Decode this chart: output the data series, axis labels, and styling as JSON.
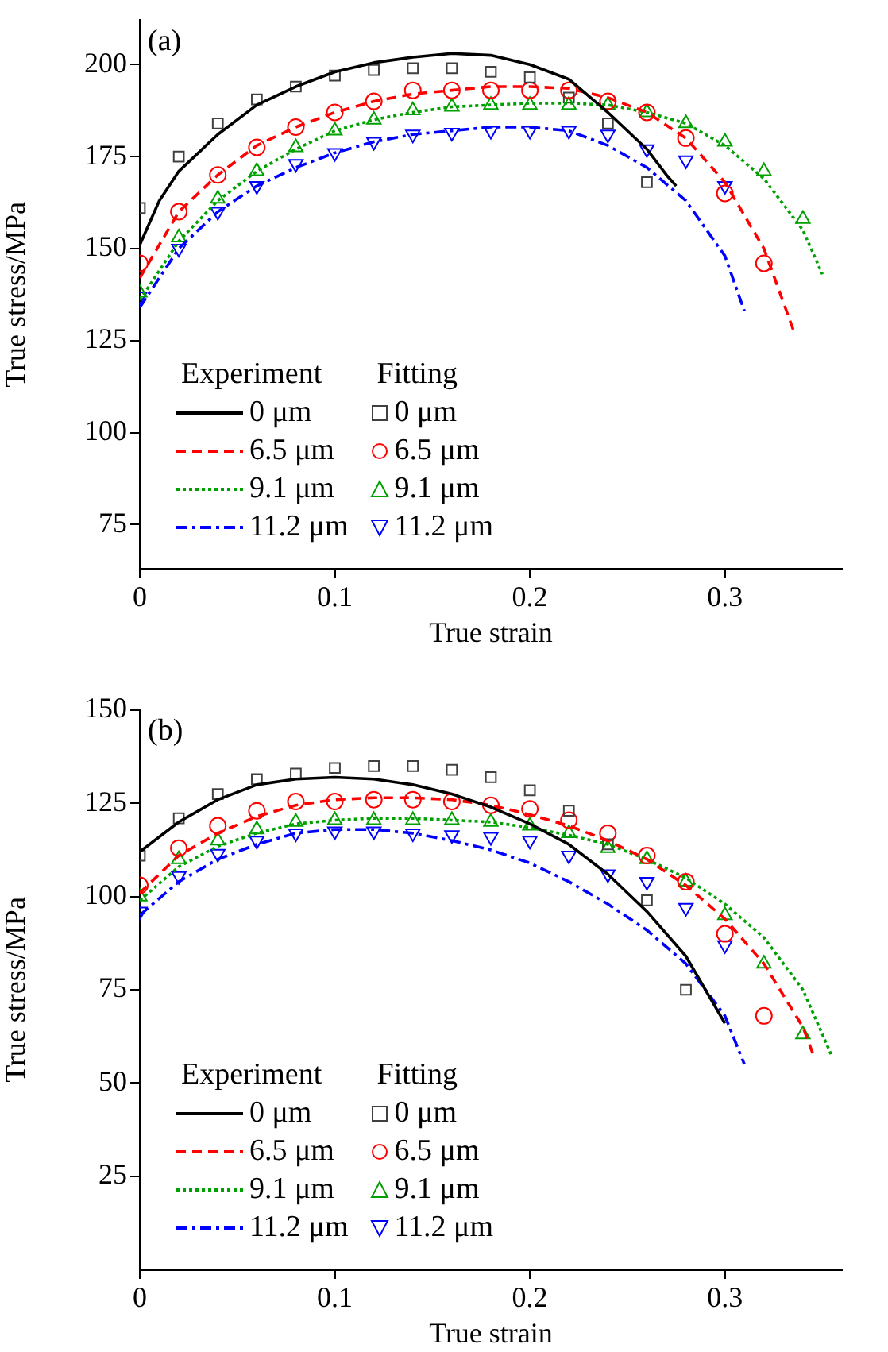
{
  "chart_data": [
    {
      "type": "line",
      "title": "(a)",
      "xlabel": "True strain",
      "ylabel": "True stress/MPa",
      "annotations": [
        "Experiment",
        "Fitting"
      ],
      "xlim": [
        0,
        0.36
      ],
      "ylim": [
        63,
        212
      ],
      "xticks": [
        0,
        0.1,
        0.2,
        0.3
      ],
      "yticks": [
        75,
        100,
        125,
        150,
        175,
        200
      ],
      "grid": false,
      "legend": "bottom left",
      "series": [
        {
          "name": "0 μm",
          "type": "line",
          "line_style": "solid",
          "color": "#000000",
          "x": [
            0,
            0.01,
            0.02,
            0.04,
            0.06,
            0.08,
            0.1,
            0.12,
            0.14,
            0.16,
            0.18,
            0.2,
            0.22,
            0.24,
            0.26,
            0.27,
            0.275
          ],
          "values": [
            151,
            163,
            171,
            181,
            189,
            194,
            198,
            200.5,
            202,
            203,
            202.5,
            200,
            196,
            187,
            177,
            170,
            167
          ]
        },
        {
          "name": "6.5 μm",
          "type": "line",
          "line_style": "dashed",
          "color": "#ff0000",
          "x": [
            0,
            0.02,
            0.04,
            0.06,
            0.08,
            0.1,
            0.12,
            0.14,
            0.16,
            0.18,
            0.2,
            0.22,
            0.24,
            0.26,
            0.28,
            0.3,
            0.32,
            0.335
          ],
          "values": [
            142,
            160,
            170,
            178,
            183,
            187,
            190,
            192,
            193,
            194,
            194,
            193.5,
            191,
            187,
            180,
            168,
            150,
            128
          ]
        },
        {
          "name": "9.1 μm",
          "type": "line",
          "line_style": "dotted",
          "color": "#00a000",
          "x": [
            0,
            0.02,
            0.04,
            0.06,
            0.08,
            0.1,
            0.12,
            0.14,
            0.16,
            0.18,
            0.2,
            0.22,
            0.24,
            0.26,
            0.28,
            0.3,
            0.32,
            0.34,
            0.35
          ],
          "values": [
            136,
            152,
            163,
            171,
            177,
            182,
            185,
            187,
            188.5,
            189,
            189.5,
            189.5,
            189,
            187,
            184,
            178,
            169,
            155,
            143
          ]
        },
        {
          "name": "11.2 μm",
          "type": "line",
          "line_style": "dashdot",
          "color": "#0000ff",
          "x": [
            0,
            0.02,
            0.04,
            0.06,
            0.08,
            0.1,
            0.12,
            0.14,
            0.16,
            0.18,
            0.2,
            0.22,
            0.24,
            0.26,
            0.28,
            0.3,
            0.31
          ],
          "values": [
            134,
            150,
            160,
            167,
            172,
            176,
            179,
            181,
            182,
            183,
            183,
            182,
            178,
            172,
            163,
            148,
            133
          ]
        },
        {
          "name": "0 μm",
          "type": "scatter",
          "marker": "square",
          "color": "#404040",
          "x": [
            0,
            0.02,
            0.04,
            0.06,
            0.08,
            0.1,
            0.12,
            0.14,
            0.16,
            0.18,
            0.2,
            0.22,
            0.24,
            0.26
          ],
          "values": [
            161,
            175,
            184,
            190.5,
            194,
            197,
            198.5,
            199,
            199,
            198,
            196.5,
            191,
            184,
            168
          ]
        },
        {
          "name": "6.5 μm",
          "type": "scatter",
          "marker": "circle",
          "color": "#ff0000",
          "x": [
            0,
            0.02,
            0.04,
            0.06,
            0.08,
            0.1,
            0.12,
            0.14,
            0.16,
            0.18,
            0.2,
            0.22,
            0.24,
            0.26,
            0.28,
            0.3,
            0.32
          ],
          "values": [
            146,
            160,
            170,
            177.5,
            183,
            187,
            190,
            193,
            193,
            193,
            193,
            193,
            190,
            187,
            180,
            165,
            146
          ]
        },
        {
          "name": "9.1 μm",
          "type": "scatter",
          "marker": "triangle",
          "color": "#00a000",
          "x": [
            0,
            0.02,
            0.04,
            0.06,
            0.08,
            0.1,
            0.12,
            0.14,
            0.16,
            0.18,
            0.2,
            0.22,
            0.24,
            0.26,
            0.28,
            0.3,
            0.32,
            0.34
          ],
          "values": [
            138,
            153,
            163.5,
            171,
            177.5,
            182,
            185,
            187.5,
            188.5,
            189,
            189,
            189,
            189,
            187,
            184,
            179,
            171,
            158
          ]
        },
        {
          "name": "11.2 μm",
          "type": "scatter",
          "marker": "triangle-down",
          "color": "#0000ff",
          "x": [
            0,
            0.02,
            0.04,
            0.06,
            0.08,
            0.1,
            0.12,
            0.14,
            0.16,
            0.18,
            0.2,
            0.22,
            0.24,
            0.26,
            0.28,
            0.3
          ],
          "values": [
            137,
            150,
            160,
            167,
            173,
            176,
            179,
            181,
            181.5,
            182,
            182,
            182,
            181,
            177,
            174,
            167
          ]
        }
      ]
    },
    {
      "type": "line",
      "title": "(b)",
      "xlabel": "True strain",
      "ylabel": "True stress/MPa",
      "annotations": [
        "Experiment",
        "Fitting"
      ],
      "xlim": [
        0,
        0.36
      ],
      "ylim": [
        0,
        150
      ],
      "xticks": [
        0,
        0.1,
        0.2,
        0.3
      ],
      "yticks": [
        25,
        50,
        75,
        100,
        125,
        150
      ],
      "grid": false,
      "legend": "bottom left",
      "series": [
        {
          "name": "0 μm",
          "type": "line",
          "line_style": "solid",
          "color": "#000000",
          "x": [
            0,
            0.02,
            0.04,
            0.06,
            0.08,
            0.1,
            0.12,
            0.14,
            0.16,
            0.18,
            0.2,
            0.22,
            0.24,
            0.26,
            0.28,
            0.3
          ],
          "values": [
            112,
            120,
            126,
            130,
            131.5,
            132,
            131.5,
            130,
            127.5,
            124,
            119.5,
            114,
            106,
            96,
            84,
            66
          ]
        },
        {
          "name": "6.5 μm",
          "type": "line",
          "line_style": "dashed",
          "color": "#ff0000",
          "x": [
            0,
            0.02,
            0.04,
            0.06,
            0.08,
            0.1,
            0.12,
            0.14,
            0.16,
            0.18,
            0.2,
            0.22,
            0.24,
            0.26,
            0.28,
            0.3,
            0.32,
            0.34,
            0.345
          ],
          "values": [
            101,
            111,
            117,
            121.5,
            124.5,
            126,
            126.5,
            126.5,
            126,
            124.5,
            122,
            119,
            115,
            110,
            103,
            94,
            82,
            65,
            58
          ]
        },
        {
          "name": "9.1 μm",
          "type": "line",
          "line_style": "dotted",
          "color": "#00a000",
          "x": [
            0,
            0.02,
            0.04,
            0.06,
            0.08,
            0.1,
            0.12,
            0.14,
            0.16,
            0.18,
            0.2,
            0.22,
            0.24,
            0.26,
            0.28,
            0.3,
            0.32,
            0.34,
            0.355
          ],
          "values": [
            99,
            108,
            113.5,
            117,
            119.5,
            120.5,
            121,
            121,
            120.5,
            120,
            118.5,
            116.5,
            114,
            110,
            105,
            98,
            89,
            75,
            57
          ]
        },
        {
          "name": "11.2 μm",
          "type": "line",
          "line_style": "dashdot",
          "color": "#0000ff",
          "x": [
            0,
            0.02,
            0.04,
            0.06,
            0.08,
            0.1,
            0.12,
            0.14,
            0.16,
            0.18,
            0.2,
            0.22,
            0.24,
            0.26,
            0.28,
            0.3,
            0.31
          ],
          "values": [
            95,
            104,
            110,
            114,
            117,
            118,
            118,
            117,
            115,
            112.5,
            109,
            104,
            98,
            91,
            82,
            68,
            55
          ]
        },
        {
          "name": "0 μm",
          "type": "scatter",
          "marker": "square",
          "color": "#404040",
          "x": [
            0,
            0.02,
            0.04,
            0.06,
            0.08,
            0.1,
            0.12,
            0.14,
            0.16,
            0.18,
            0.2,
            0.22,
            0.24,
            0.26,
            0.28
          ],
          "values": [
            111,
            121,
            127.5,
            131.5,
            133,
            134.5,
            135,
            135,
            134,
            132,
            128.5,
            123,
            114,
            99,
            75
          ]
        },
        {
          "name": "6.5 μm",
          "type": "scatter",
          "marker": "circle",
          "color": "#ff0000",
          "x": [
            0,
            0.02,
            0.04,
            0.06,
            0.08,
            0.1,
            0.12,
            0.14,
            0.16,
            0.18,
            0.2,
            0.22,
            0.24,
            0.26,
            0.28,
            0.3,
            0.32
          ],
          "values": [
            103,
            113,
            119,
            123,
            125.5,
            125.5,
            126,
            126,
            125.5,
            124.5,
            123.5,
            120.5,
            117,
            111,
            104,
            90,
            68
          ]
        },
        {
          "name": "9.1 μm",
          "type": "scatter",
          "marker": "triangle",
          "color": "#00a000",
          "x": [
            0,
            0.02,
            0.04,
            0.06,
            0.08,
            0.1,
            0.12,
            0.14,
            0.16,
            0.18,
            0.2,
            0.22,
            0.24,
            0.26,
            0.28,
            0.3,
            0.32,
            0.34
          ],
          "values": [
            100,
            110,
            115,
            118,
            120,
            120.5,
            120.5,
            120.5,
            120.5,
            120,
            119,
            117,
            113,
            110,
            104,
            95,
            82,
            63
          ]
        },
        {
          "name": "11.2 μm",
          "type": "scatter",
          "marker": "triangle-down",
          "color": "#0000ff",
          "x": [
            0,
            0.02,
            0.04,
            0.06,
            0.08,
            0.1,
            0.12,
            0.14,
            0.16,
            0.18,
            0.2,
            0.22,
            0.24,
            0.26,
            0.28,
            0.3
          ],
          "values": [
            96,
            105.5,
            111.5,
            115,
            117,
            117.5,
            117.5,
            117,
            116.5,
            116,
            115,
            111,
            106,
            104,
            97,
            87
          ]
        }
      ]
    }
  ]
}
